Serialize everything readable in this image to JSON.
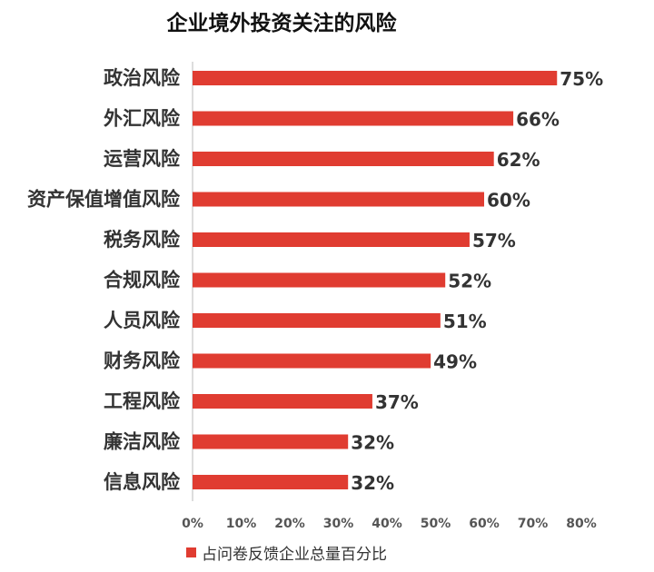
{
  "chart_data": {
    "type": "bar",
    "orientation": "horizontal",
    "title": "企业境外投资关注的风险",
    "categories": [
      "政治风险",
      "外汇风险",
      "运营风险",
      "资产保值增值风险",
      "税务风险",
      "合规风险",
      "人员风险",
      "财务风险",
      "工程风险",
      "廉洁风险",
      "信息风险"
    ],
    "series": [
      {
        "name": "占问卷反馈企业总量百分比",
        "values": [
          75,
          66,
          62,
          60,
          57,
          52,
          51,
          49,
          37,
          32,
          32
        ],
        "value_labels": [
          "75%",
          "66%",
          "62%",
          "60%",
          "57%",
          "52%",
          "51%",
          "49%",
          "37%",
          "32%",
          "32%"
        ]
      }
    ],
    "xlim": [
      0,
      80
    ],
    "xticks": [
      0,
      10,
      20,
      30,
      40,
      50,
      60,
      70,
      80
    ],
    "xtick_labels": [
      "0%",
      "10%",
      "20%",
      "30%",
      "40%",
      "50%",
      "60%",
      "70%",
      "80%"
    ],
    "xlabel": "",
    "ylabel": "",
    "grid": false,
    "legend_position": "bottom-left",
    "bar_color": "#e03c31"
  }
}
